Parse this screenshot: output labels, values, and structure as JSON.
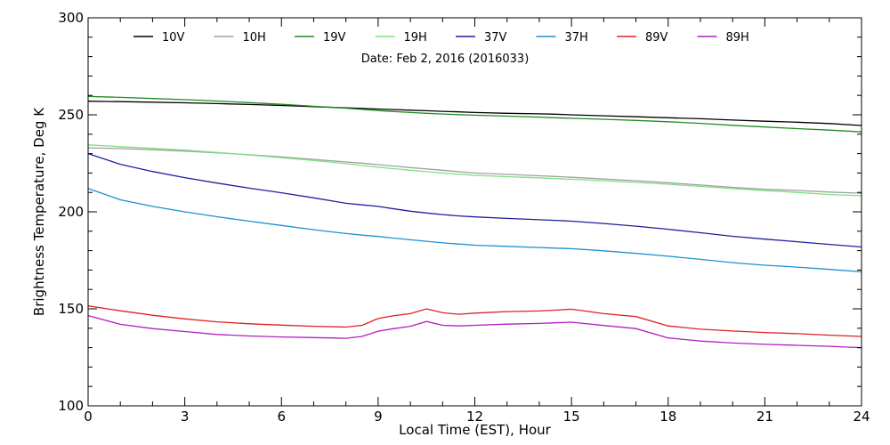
{
  "chart_data": {
    "type": "line",
    "title": "",
    "annotation": "Date: Feb  2, 2016 (2016033)",
    "xlabel": "Local Time (EST), Hour",
    "ylabel": "Brightness Temperature, Deg K",
    "xlim": [
      0,
      24
    ],
    "ylim": [
      100,
      300
    ],
    "xticks": [
      0,
      3,
      6,
      9,
      12,
      15,
      18,
      21,
      24
    ],
    "yticks": [
      100,
      150,
      200,
      250,
      300
    ],
    "legend_placement": "top",
    "grid": false,
    "x": [
      0,
      1,
      2,
      3,
      4,
      5,
      6,
      7,
      8,
      8.5,
      9,
      9.5,
      10,
      10.5,
      11,
      11.5,
      12,
      13,
      14,
      14.5,
      15,
      16,
      17,
      18,
      19,
      20,
      21,
      22,
      23,
      24
    ],
    "series": [
      {
        "name": "10V",
        "color": "#000000",
        "values": [
          257,
          256.8,
          256.5,
          256.2,
          255.8,
          255.3,
          254.8,
          254.2,
          253.6,
          253.3,
          253,
          252.7,
          252.4,
          252.1,
          251.8,
          251.5,
          251.2,
          250.8,
          250.5,
          250.3,
          250,
          249.5,
          249,
          248.5,
          248,
          247.3,
          246.7,
          246.2,
          245.5,
          244.5
        ]
      },
      {
        "name": "10H",
        "color": "#a0a0a0",
        "values": [
          233,
          232.6,
          232,
          231.3,
          230.4,
          229.4,
          228.3,
          227,
          225.7,
          225.1,
          224.3,
          223.6,
          222.8,
          222.1,
          221.4,
          220.7,
          220,
          219.3,
          218.6,
          218.2,
          217.8,
          216.9,
          216,
          215,
          213.8,
          212.6,
          211.6,
          211,
          210.2,
          209.6
        ]
      },
      {
        "name": "19V",
        "color": "#228b22",
        "values": [
          259.5,
          259,
          258.4,
          257.8,
          257.1,
          256.3,
          255.4,
          254.4,
          253.4,
          252.8,
          252.2,
          251.7,
          251.2,
          250.8,
          250.4,
          250.1,
          249.8,
          249.3,
          248.8,
          248.5,
          248.2,
          247.7,
          247.1,
          246.4,
          245.6,
          244.6,
          243.7,
          242.9,
          242.1,
          241.2
        ]
      },
      {
        "name": "19H",
        "color": "#7fe07f",
        "values": [
          234.5,
          233.6,
          232.7,
          231.8,
          230.6,
          229.3,
          227.9,
          226.4,
          224.8,
          223.9,
          223,
          222.2,
          221.4,
          220.7,
          220,
          219.4,
          218.8,
          218.1,
          217.5,
          217.1,
          216.8,
          216,
          215.2,
          214.2,
          213.1,
          212,
          210.9,
          210,
          208.9,
          208.3
        ]
      },
      {
        "name": "37V",
        "color": "#1f1fa0",
        "values": [
          230,
          224.5,
          220.8,
          217.6,
          214.8,
          212.2,
          209.8,
          207.2,
          204.4,
          203.6,
          202.8,
          201.5,
          200.3,
          199.4,
          198.6,
          197.9,
          197.4,
          196.6,
          195.9,
          195.6,
          195.2,
          194,
          192.6,
          191,
          189.2,
          187.4,
          185.9,
          184.6,
          183.2,
          181.9
        ]
      },
      {
        "name": "37H",
        "color": "#1e90d0",
        "values": [
          212,
          206.2,
          202.8,
          200,
          197.5,
          195.2,
          193,
          190.8,
          188.8,
          188,
          187.3,
          186.4,
          185.6,
          184.8,
          184,
          183.4,
          182.8,
          182.2,
          181.6,
          181.3,
          181,
          179.9,
          178.6,
          177.1,
          175.5,
          173.8,
          172.5,
          171.5,
          170.3,
          169.1
        ]
      },
      {
        "name": "89V",
        "color": "#e02020",
        "values": [
          151.5,
          149,
          146.7,
          144.8,
          143.3,
          142.3,
          141.6,
          141,
          140.6,
          141.5,
          145,
          146.5,
          147.5,
          150,
          148,
          147.2,
          147.8,
          148.6,
          148.9,
          149.3,
          149.8,
          147.5,
          146,
          141.2,
          139.5,
          138.6,
          137.8,
          137.2,
          136.4,
          135.8
        ]
      },
      {
        "name": "89H",
        "color": "#b020c0",
        "values": [
          146.5,
          142,
          139.8,
          138.3,
          136.8,
          136,
          135.5,
          135.2,
          134.8,
          135.8,
          138.5,
          139.8,
          141,
          143.5,
          141.5,
          141.2,
          141.5,
          142.1,
          142.5,
          142.8,
          143.1,
          141.4,
          139.8,
          135,
          133.4,
          132.4,
          131.7,
          131.2,
          130.7,
          130
        ]
      }
    ]
  }
}
